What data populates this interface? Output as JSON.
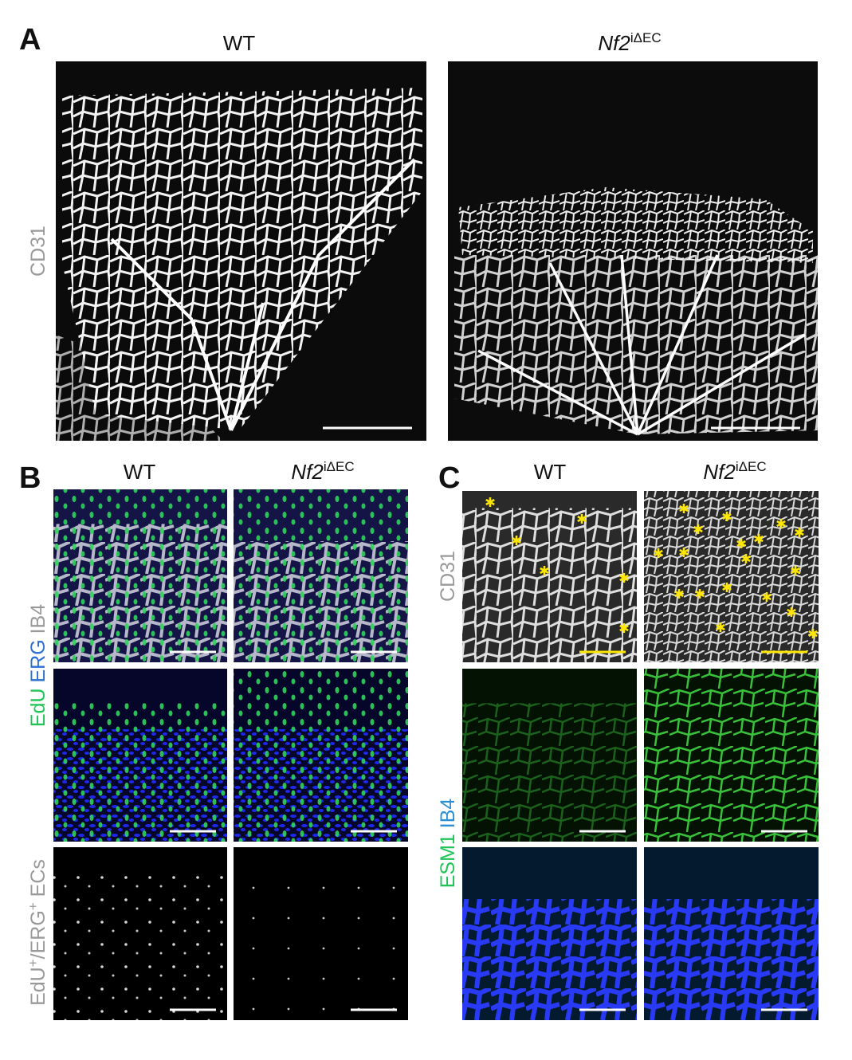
{
  "panels": [
    {
      "label": "A",
      "columns": [
        {
          "text": "WT"
        },
        {
          "gene": "Nf2",
          "sup": "iΔEC"
        }
      ],
      "rows": [
        "CD31"
      ]
    },
    {
      "label": "B",
      "columns": [
        {
          "text": "WT"
        },
        {
          "gene": "Nf2",
          "sup": "iΔEC"
        }
      ],
      "rows": [
        {
          "parts": [
            "EdU",
            "ERG",
            "IB4"
          ]
        },
        {
          "parts": [
            "EdU",
            "+",
            "/ERG",
            "+",
            " ECs"
          ]
        }
      ]
    },
    {
      "label": "C",
      "columns": [
        {
          "text": "WT"
        },
        {
          "gene": "Nf2",
          "sup": "iΔEC"
        }
      ],
      "rows": [
        {
          "parts": [
            "CD31"
          ]
        },
        {
          "parts": [
            "ESM1",
            "IB4"
          ]
        }
      ]
    }
  ]
}
